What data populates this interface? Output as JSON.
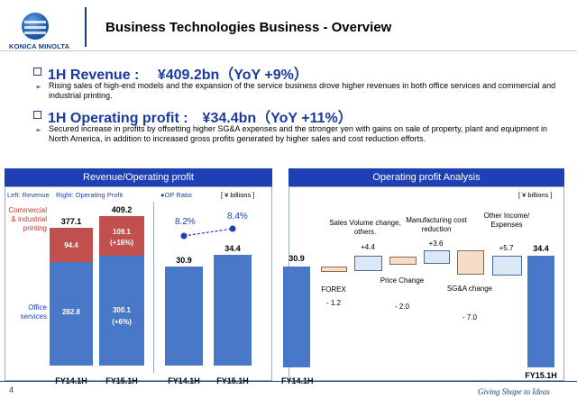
{
  "logo": {
    "name": "KONICA MINOLTA"
  },
  "slide": {
    "title": "Business Technologies Business - Overview",
    "page_number": "4",
    "tagline": "Giving Shape to Ideas"
  },
  "revenue": {
    "heading": "1H Revenue :　 ¥409.2bn（YoY +9%）",
    "bullet": "Rising sales of high-end models and the expansion of the service business drove higher revenues in both office services and commercial and industrial printing."
  },
  "operating": {
    "heading": "1H Operating profit :　¥34.4bn（YoY +11%）",
    "bullet": "Secured increase in profits by offsetting higher SG&A expenses and the stronger yen with gains on sale of property, plant and equipment in North America, in addition to increased gross profits generated by higher sales and cost reduction efforts."
  },
  "left_panel": {
    "title": "Revenue/Operating profit",
    "legend_left": "Left: Revenue",
    "legend_right": "Right: Operating Profit",
    "legend_ratio": "●OP Ratio",
    "unit": "[ ¥ billions ]",
    "seg_commercial": "Commercial & industrial printing",
    "seg_office": "Office services"
  },
  "right_panel": {
    "title": "Operating profit Analysis",
    "unit": "[ ¥ billions ]"
  },
  "chart_data": [
    {
      "type": "bar",
      "categories": [
        "FY14.1H",
        "FY15.1H"
      ],
      "series": [
        {
          "name": "Office services",
          "values": [
            282.8,
            300.1
          ],
          "labels": [
            "282.8",
            "300.1\n(+6%)"
          ]
        },
        {
          "name": "Commercial & industrial printing",
          "values": [
            94.4,
            109.1
          ],
          "labels": [
            "94.4",
            "109.1\n(+16%)"
          ]
        }
      ],
      "totals": [
        "377.1",
        "409.2"
      ]
    },
    {
      "type": "bar",
      "categories": [
        "FY14.1H",
        "FY15.1H"
      ],
      "values": [
        30.9,
        34.4
      ],
      "op_ratio": [
        "8.2%",
        "8.4%"
      ]
    },
    {
      "type": "bar",
      "categories": [
        "FY14.1H",
        "FOREX",
        "Sales Volume change, others.",
        "Price Change",
        "Manufacturing cost reduction",
        "SG&A change",
        "Other Income/ Expenses",
        "FY15.1H"
      ],
      "values": [
        30.9,
        -1.2,
        4.4,
        -2.0,
        3.6,
        -7.0,
        5.7,
        34.4
      ],
      "labels": [
        "30.9",
        "- 1.2",
        "+4.4",
        "- 2.0",
        "+3.6",
        "- 7.0",
        "+5.7",
        "34.4"
      ]
    }
  ]
}
